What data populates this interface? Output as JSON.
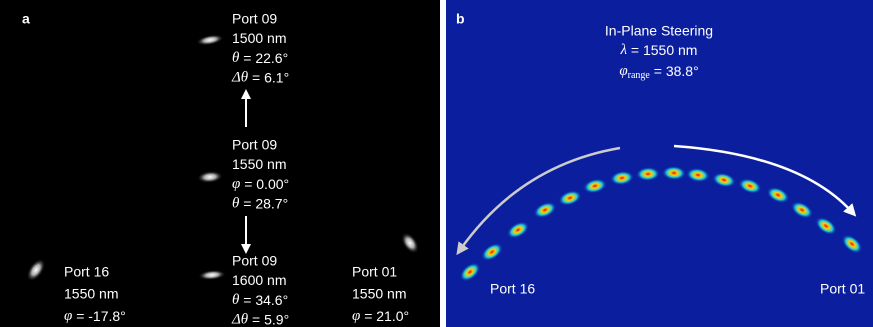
{
  "panel_a": {
    "label": "a",
    "groups": [
      {
        "lines": [
          "Port 09",
          "1500 nm",
          {
            "symbol": "θ",
            "text": "  = 22.6°"
          },
          {
            "symbol": "Δθ",
            "text": " = 6.1°"
          }
        ]
      },
      {
        "lines": [
          "Port 09",
          "1550 nm",
          {
            "symbol": "φ",
            "text": " = 0.00°"
          },
          {
            "symbol": "θ",
            "text": " = 28.7°"
          }
        ]
      },
      {
        "lines": [
          "Port 09",
          "1600 nm",
          {
            "symbol": "θ",
            "text": "  = 34.6°"
          },
          {
            "symbol": "Δθ",
            "text": " = 5.9°"
          }
        ]
      },
      {
        "lines": [
          "Port 16",
          "1550 nm",
          {
            "symbol": "φ",
            "text": " = -17.8°"
          }
        ]
      },
      {
        "lines": [
          "Port 01",
          "1550 nm",
          {
            "symbol": "φ",
            "text": " = 21.0°"
          }
        ]
      }
    ]
  },
  "panel_b": {
    "label": "b",
    "title": "In-Plane Steering",
    "wavelength": {
      "symbol": "λ",
      "text": " = 1550 nm"
    },
    "range": {
      "symbol": "φ",
      "sub": "range",
      "text": " = 38.8°"
    },
    "left_port": "Port 16",
    "right_port": "Port 01"
  }
}
